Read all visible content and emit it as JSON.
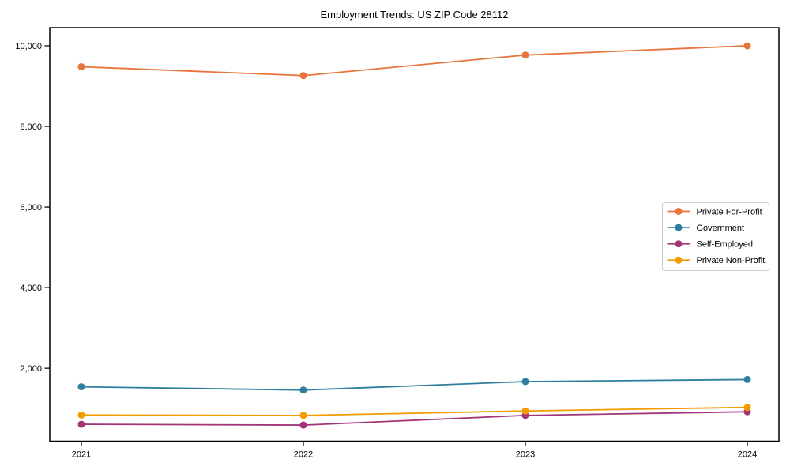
{
  "chart_data": {
    "type": "line",
    "title": "Employment Trends: US ZIP Code 28112",
    "categories": [
      "2021",
      "2022",
      "2023",
      "2024"
    ],
    "series": [
      {
        "name": "Private For-Profit",
        "color": "#e8743b",
        "values": [
          9480,
          9260,
          9770,
          10000
        ]
      },
      {
        "name": "Government",
        "color": "#2e7f9e",
        "values": [
          1540,
          1460,
          1670,
          1720
        ]
      },
      {
        "name": "Self-Employed",
        "color": "#a23577",
        "values": [
          610,
          590,
          830,
          920
        ]
      },
      {
        "name": "Private Non-Profit",
        "color": "#f29c00",
        "values": [
          840,
          830,
          940,
          1030
        ]
      }
    ],
    "xlabel": "",
    "ylabel": "",
    "ylim": [
      190,
      10450
    ],
    "yticks": [
      2000,
      4000,
      6000,
      8000,
      10000
    ],
    "grid": false,
    "legend_position": "center-right",
    "marker": "circle",
    "line_width": 1.8,
    "marker_radius": 4.5,
    "axis_color": "#000000",
    "background_color": "#ffffff",
    "legend_border_color": "#cccccc"
  }
}
